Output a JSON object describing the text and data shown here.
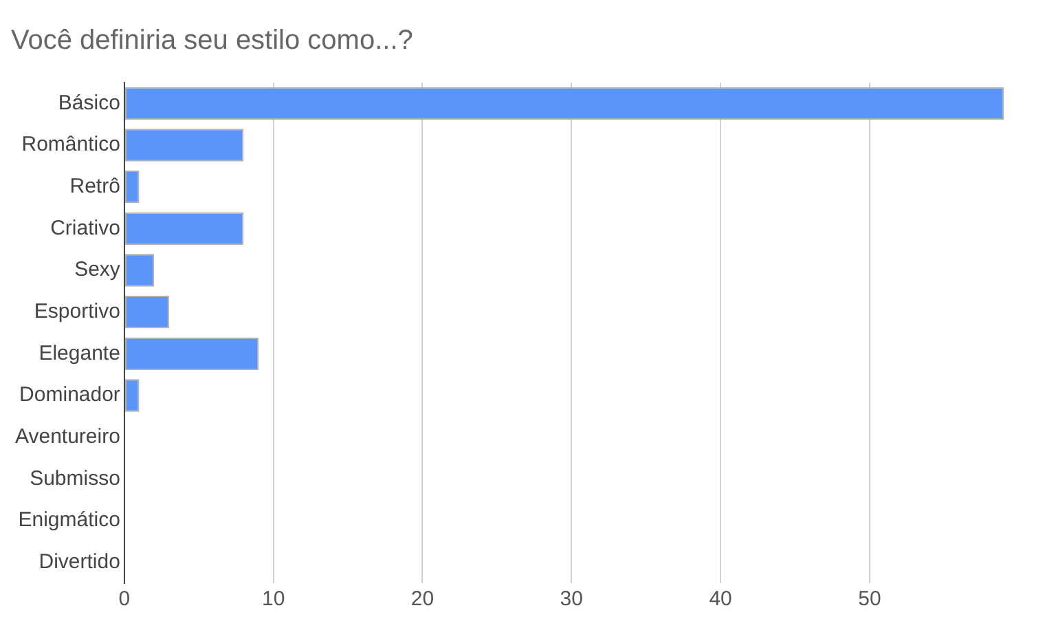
{
  "chart_data": {
    "type": "bar",
    "orientation": "horizontal",
    "title": "Você definiria seu estilo como...?",
    "categories": [
      "Básico",
      "Romântico",
      "Retrô",
      "Criativo",
      "Sexy",
      "Esportivo",
      "Elegante",
      "Dominador",
      "Aventureiro",
      "Submisso",
      "Enigmático",
      "Divertido"
    ],
    "values": [
      59,
      8,
      1,
      8,
      2,
      3,
      9,
      1,
      0,
      0,
      0,
      0
    ],
    "color": "#5b95f9",
    "xlim": [
      0,
      59
    ],
    "xticks": [
      0,
      10,
      20,
      30,
      40,
      50
    ],
    "grid": "x"
  }
}
